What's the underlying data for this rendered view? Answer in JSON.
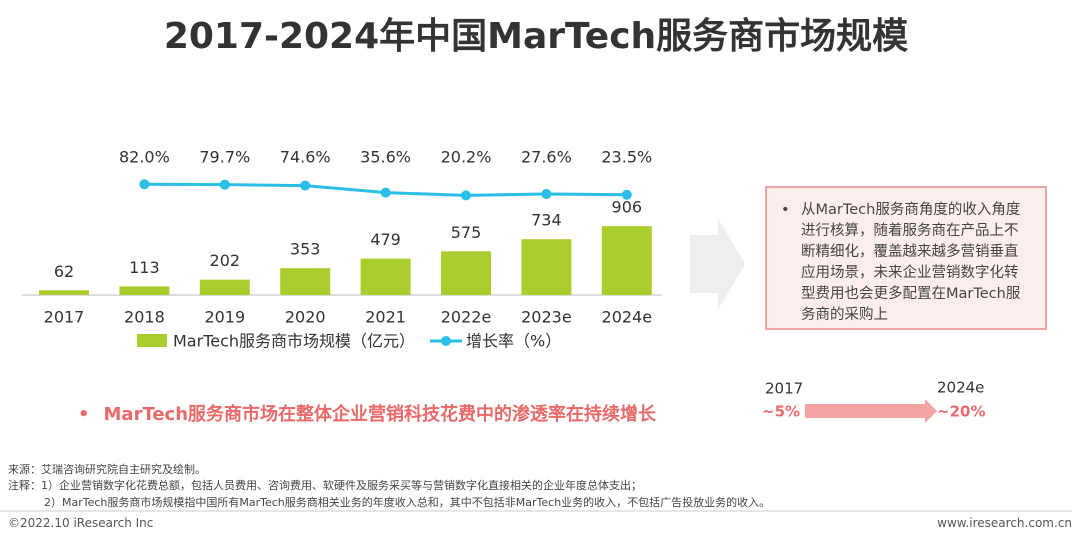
{
  "chart_data": {
    "type": "bar",
    "title": "2017-2024年中国MarTech服务商市场规模",
    "categories": [
      "2017",
      "2018",
      "2019",
      "2020",
      "2021",
      "2022e",
      "2023e",
      "2024e"
    ],
    "series": [
      {
        "name": "MarTech服务商市场规模（亿元）",
        "type": "bar",
        "color": "#a9cd2c",
        "values": [
          62,
          113,
          202,
          353,
          479,
          575,
          734,
          906
        ]
      },
      {
        "name": "增长率（%）",
        "type": "line",
        "color": "#2bbfe7",
        "values": [
          null,
          82.0,
          79.7,
          74.6,
          35.6,
          20.2,
          27.6,
          23.5
        ],
        "value_labels": [
          null,
          "82.0%",
          "79.7%",
          "74.6%",
          "35.6%",
          "20.2%",
          "27.6%",
          "23.5%"
        ]
      }
    ]
  },
  "note": "从MarTech服务商角度的收入角度进行核算，随着服务商在产品上不断精细化，覆盖越来越多营销垂直应用场景，未来企业营销数字化转型费用也会更多配置在MarTech服务商的采购上",
  "highlight": "MarTech服务商市场在整体企业营销科技花费中的渗透率在持续增长",
  "comparison": {
    "from_label": "2017",
    "from_value": "~5%",
    "to_label": "2024e",
    "to_value": "~20%"
  },
  "source": [
    "来源：艾瑞咨询研究院自主研究及绘制。",
    "注释：1）企业营销数字化花费总额，包括人员费用、咨询费用、软硬件及服务采买等与营销数字化直接相关的企业年度总体支出；",
    "2）MarTech服务商市场规模指中国所有MarTech服务商相关业务的年度收入总和，其中不包括非MarTech业务的收入，不包括广告投放业务的收入。"
  ],
  "footer": {
    "left": "©2022.10 iResearch Inc",
    "right": "www.iresearch.com.cn"
  }
}
